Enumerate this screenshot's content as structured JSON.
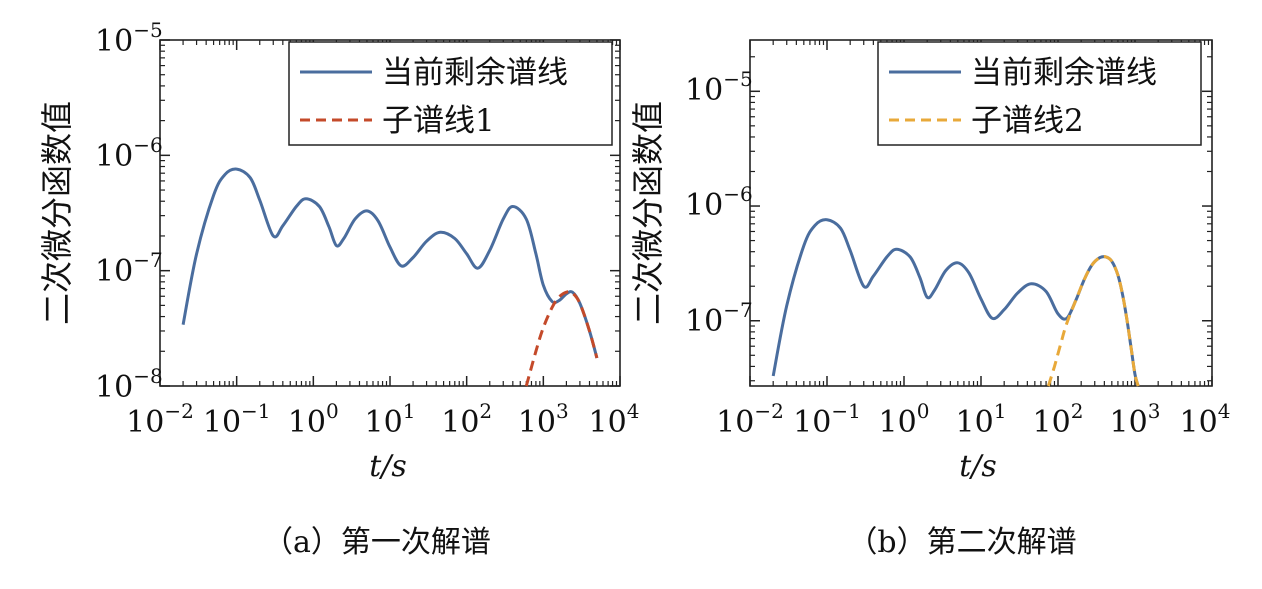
{
  "chart_data": [
    {
      "type": "line",
      "panel_caption": "（a）第一次解谱",
      "xlabel": "t/s",
      "ylabel": "二次微分函数值",
      "xscale": "log",
      "yscale": "log",
      "xlim": [
        0.01,
        10000
      ],
      "ylim": [
        1e-08,
        1e-05
      ],
      "x_ticks": [
        0.01,
        0.1,
        1,
        10,
        100,
        1000,
        10000
      ],
      "x_tick_labels": [
        {
          "base": "10",
          "exp": "−2"
        },
        {
          "base": "10",
          "exp": "−1"
        },
        {
          "base": "10",
          "exp": "0"
        },
        {
          "base": "10",
          "exp": "1"
        },
        {
          "base": "10",
          "exp": "2"
        },
        {
          "base": "10",
          "exp": "3"
        },
        {
          "base": "10",
          "exp": "4"
        }
      ],
      "y_ticks": [
        1e-08,
        1e-07,
        1e-06,
        1e-05
      ],
      "y_tick_labels": [
        {
          "base": "10",
          "exp": "−8"
        },
        {
          "base": "10",
          "exp": "−7"
        },
        {
          "base": "10",
          "exp": "−6"
        },
        {
          "base": "10",
          "exp": "−5"
        }
      ],
      "legend_position": "top-right",
      "series": [
        {
          "name": "当前剩余谱线",
          "color": "#4a6d9e",
          "style": "solid",
          "x": [
            0.02,
            0.03,
            0.05,
            0.07,
            0.1,
            0.15,
            0.2,
            0.3,
            0.4,
            0.6,
            0.8,
            1.2,
            1.6,
            2.0,
            2.5,
            3.5,
            5,
            7,
            10,
            14,
            20,
            30,
            45,
            70,
            100,
            140,
            200,
            300,
            400,
            600,
            800,
            1000,
            1300,
            1600,
            2000,
            2400,
            3000,
            4000,
            5000
          ],
          "y": [
            3.4e-08,
            1.4e-07,
            4.5e-07,
            6.8e-07,
            7.6e-07,
            6.4e-07,
            4.1e-07,
            2e-07,
            2.45e-07,
            3.6e-07,
            4.2e-07,
            3.6e-07,
            2.4e-07,
            1.65e-07,
            1.9e-07,
            2.8e-07,
            3.3e-07,
            2.7e-07,
            1.6e-07,
            1.1e-07,
            1.3e-07,
            1.8e-07,
            2.15e-07,
            1.9e-07,
            1.4e-07,
            1.05e-07,
            1.5e-07,
            2.8e-07,
            3.6e-07,
            2.8e-07,
            1.4e-07,
            7.5e-08,
            5.4e-08,
            5.5e-08,
            6.3e-08,
            6.5e-08,
            5.2e-08,
            3e-08,
            1.75e-08
          ]
        },
        {
          "name": "子谱线1",
          "color": "#c44a2a",
          "style": "dashed",
          "x": [
            600,
            800,
            1000,
            1300,
            1600,
            2000,
            2400,
            3000,
            4000,
            5000
          ],
          "y": [
            1e-08,
            2e-08,
            3.2e-08,
            4.8e-08,
            5.9e-08,
            6.5e-08,
            6.4e-08,
            5.2e-08,
            3e-08,
            1.75e-08
          ]
        }
      ]
    },
    {
      "type": "line",
      "panel_caption": "（b）第二次解谱",
      "xlabel": "t/s",
      "ylabel": "二次微分函数值",
      "xscale": "log",
      "yscale": "log",
      "xlim": [
        0.01,
        10000
      ],
      "ylim": [
        2.7e-08,
        2.8e-05
      ],
      "x_ticks": [
        0.01,
        0.1,
        1,
        10,
        100,
        1000,
        10000
      ],
      "x_tick_labels": [
        {
          "base": "10",
          "exp": "−2"
        },
        {
          "base": "10",
          "exp": "−1"
        },
        {
          "base": "10",
          "exp": "0"
        },
        {
          "base": "10",
          "exp": "1"
        },
        {
          "base": "10",
          "exp": "2"
        },
        {
          "base": "10",
          "exp": "3"
        },
        {
          "base": "10",
          "exp": "4"
        }
      ],
      "y_ticks": [
        1e-07,
        1e-06,
        1e-05
      ],
      "y_tick_labels": [
        {
          "base": "10",
          "exp": "−7"
        },
        {
          "base": "10",
          "exp": "−6"
        },
        {
          "base": "10",
          "exp": "−5"
        }
      ],
      "legend_position": "top-right",
      "series": [
        {
          "name": "当前剩余谱线",
          "color": "#4a6d9e",
          "style": "solid",
          "x": [
            0.02,
            0.03,
            0.05,
            0.07,
            0.1,
            0.15,
            0.2,
            0.3,
            0.4,
            0.6,
            0.8,
            1.2,
            1.6,
            2.0,
            2.5,
            3.5,
            5,
            7,
            10,
            14,
            20,
            30,
            45,
            70,
            100,
            130,
            170,
            220,
            280,
            350,
            420,
            500,
            600,
            700,
            800,
            900,
            1000,
            1100
          ],
          "y": [
            3.3e-08,
            1.35e-07,
            4.5e-07,
            6.8e-07,
            7.6e-07,
            6.4e-07,
            4.1e-07,
            2e-07,
            2.45e-07,
            3.6e-07,
            4.2e-07,
            3.6e-07,
            2.4e-07,
            1.6e-07,
            1.85e-07,
            2.75e-07,
            3.2e-07,
            2.6e-07,
            1.55e-07,
            1.05e-07,
            1.25e-07,
            1.75e-07,
            2.1e-07,
            1.8e-07,
            1.15e-07,
            1.05e-07,
            1.5e-07,
            2.3e-07,
            3.1e-07,
            3.55e-07,
            3.6e-07,
            3.3e-07,
            2.5e-07,
            1.6e-07,
            9.5e-08,
            5.5e-08,
            3.4e-08,
            2.7e-08
          ]
        },
        {
          "name": "子谱线2",
          "color": "#e8a93a",
          "style": "dashed",
          "x": [
            75,
            90,
            110,
            130,
            170,
            220,
            280,
            350,
            420,
            500,
            600,
            700,
            800,
            900,
            1000,
            1100
          ],
          "y": [
            2.7e-08,
            4e-08,
            6.5e-08,
            9.5e-08,
            1.5e-07,
            2.3e-07,
            3.1e-07,
            3.55e-07,
            3.6e-07,
            3.3e-07,
            2.5e-07,
            1.6e-07,
            9.5e-08,
            5.5e-08,
            3.4e-08,
            2.7e-08
          ]
        }
      ]
    }
  ]
}
